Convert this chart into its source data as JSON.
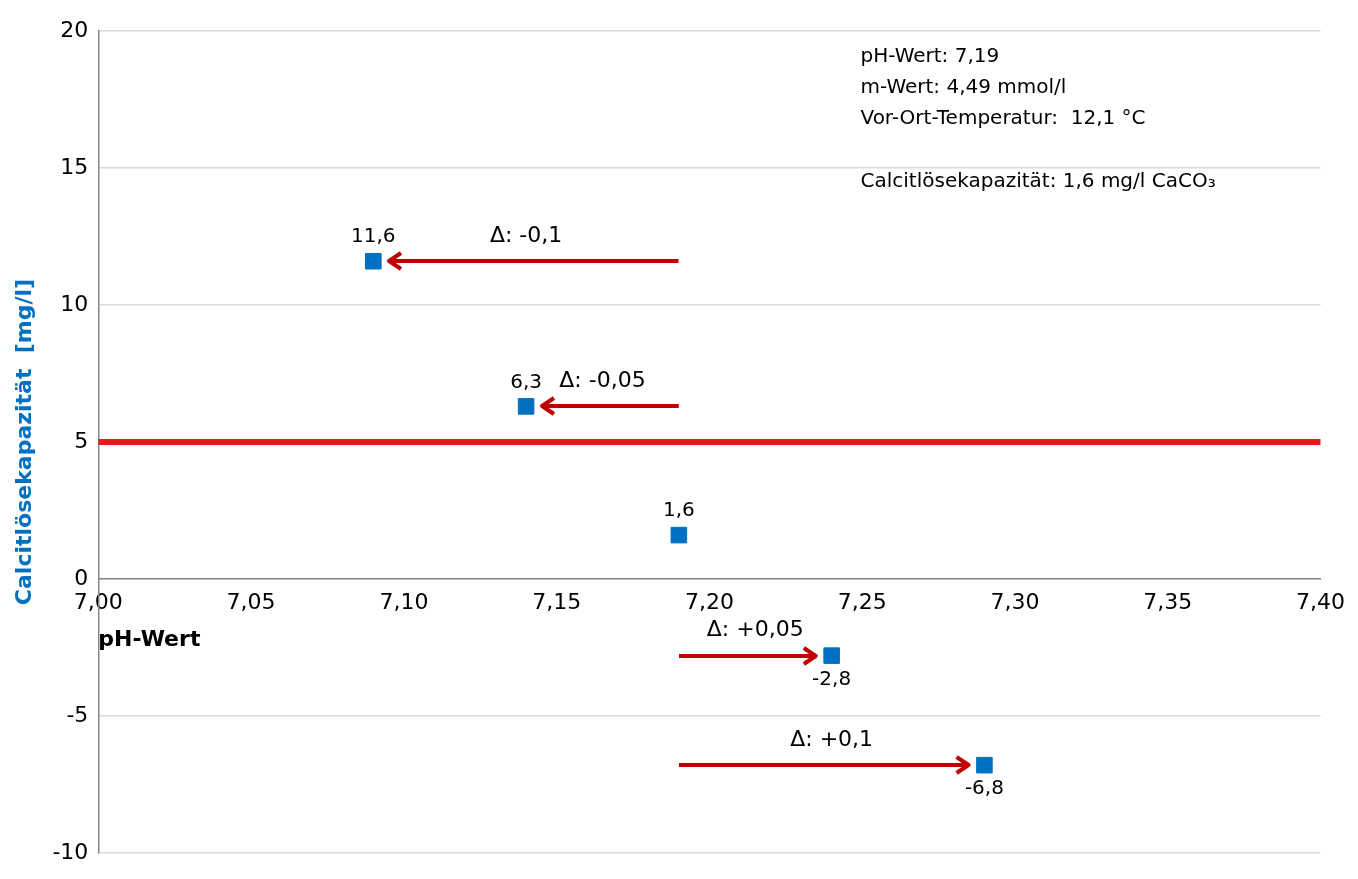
{
  "chart_data": {
    "type": "scatter",
    "xlabel": "pH-Wert",
    "ylabel": "Calcitlösekapazität  [mg/l]",
    "x": [
      7.09,
      7.14,
      7.19,
      7.24,
      7.29
    ],
    "series": [
      {
        "color": "#0070c0",
        "values": [
          11.6,
          6.3,
          1.6,
          -2.8,
          -6.8
        ],
        "value_labels": [
          "11,6",
          "6,3",
          "1,6",
          "-2,8",
          "-6,8"
        ]
      }
    ],
    "marker": "square",
    "xlim": [
      7.0,
      7.4
    ],
    "xticks": [
      {
        "value": 7.0,
        "label": "7,00"
      },
      {
        "value": 7.05,
        "label": "7,05"
      },
      {
        "value": 7.1,
        "label": "7,10"
      },
      {
        "value": 7.15,
        "label": "7,15"
      },
      {
        "value": 7.2,
        "label": "7,20"
      },
      {
        "value": 7.25,
        "label": "7,25"
      },
      {
        "value": 7.3,
        "label": "7,30"
      },
      {
        "value": 7.35,
        "label": "7,35"
      },
      {
        "value": 7.4,
        "label": "7,40"
      }
    ],
    "ylim": [
      -10,
      20
    ],
    "yticks": [
      -10,
      -5,
      0,
      5,
      10,
      15,
      20
    ],
    "grid": "y",
    "ref_lines": [
      {
        "axis": "y",
        "value": 5,
        "color": "#e41c1c"
      }
    ],
    "annotations": [
      "pH-Wert: 7,19",
      "m-Wert: 4,49 mmol/l",
      "Vor-Ort-Temperatur:  12,1 °C",
      "Calcitlösekapazität: 1,6 mg/l CaCO₃",
      "Δ: -0,1",
      "Δ: -0,05",
      "Δ: +0,05",
      "Δ: +0,1"
    ]
  }
}
